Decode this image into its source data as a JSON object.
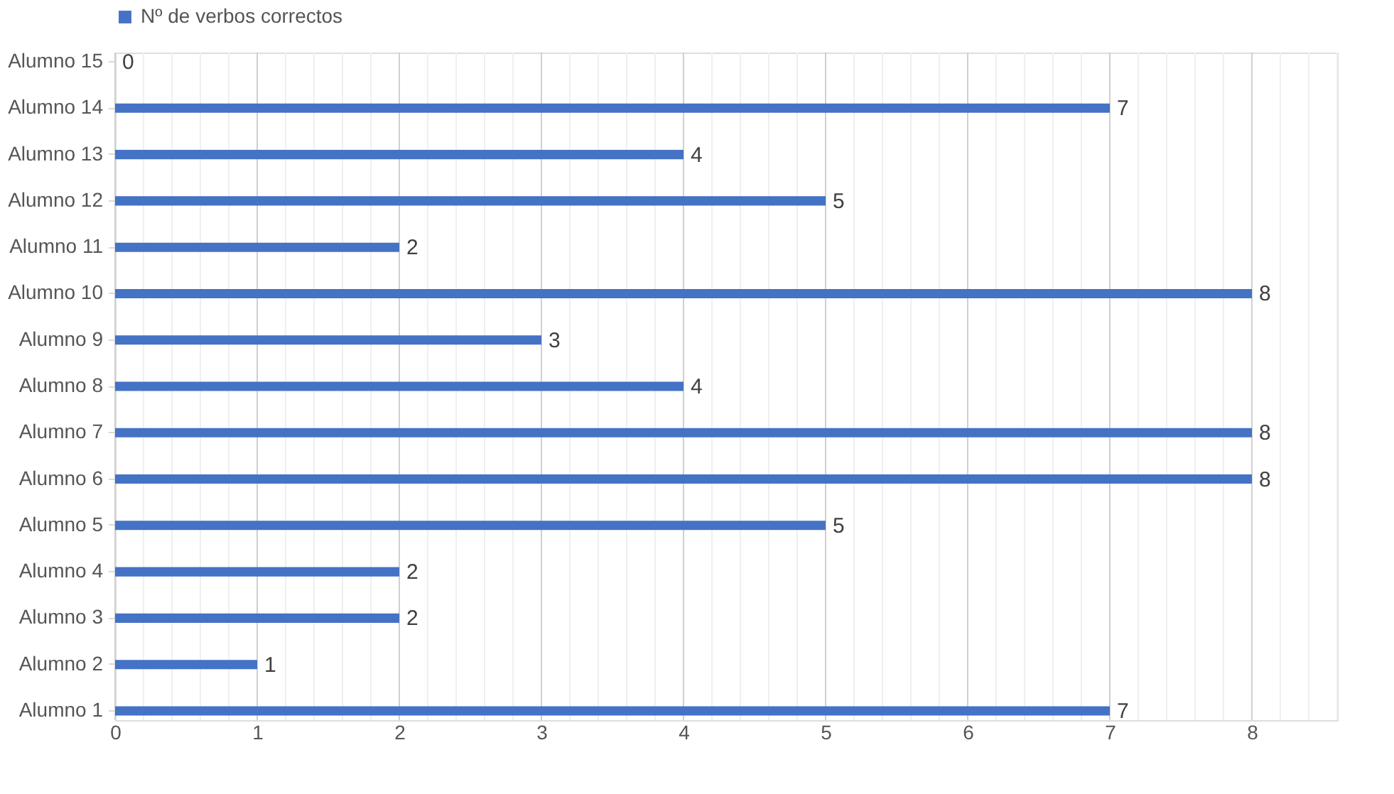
{
  "chart_data": {
    "type": "bar",
    "orientation": "horizontal",
    "categories": [
      "Alumno 15",
      "Alumno 14",
      "Alumno 13",
      "Alumno 12",
      "Alumno 11",
      "Alumno 10",
      "Alumno 9",
      "Alumno 8",
      "Alumno 7",
      "Alumno 6",
      "Alumno 5",
      "Alumno 4",
      "Alumno 3",
      "Alumno 2",
      "Alumno 1"
    ],
    "series": [
      {
        "name": "Nº de verbos correctos",
        "color": "#4472c4",
        "values": [
          0,
          7,
          4,
          5,
          2,
          8,
          3,
          4,
          8,
          8,
          5,
          2,
          2,
          1,
          7
        ]
      }
    ],
    "xlim": [
      0,
      8.6
    ],
    "xticks": [
      0,
      {
        "value": 0.2,
        "label": null
      },
      {
        "value": 0.4,
        "label": null
      },
      {
        "value": 0.6,
        "label": null
      },
      {
        "value": 0.8,
        "label": null
      },
      1,
      {
        "value": 1.2,
        "label": null
      },
      {
        "value": 1.4,
        "label": null
      },
      {
        "value": 1.6,
        "label": null
      },
      {
        "value": 1.8,
        "label": null
      },
      2,
      {
        "value": 2.2,
        "label": null
      },
      {
        "value": 2.4,
        "label": null
      },
      {
        "value": 2.6,
        "label": null
      },
      {
        "value": 2.8,
        "label": null
      },
      3,
      {
        "value": 3.2,
        "label": null
      },
      {
        "value": 3.4,
        "label": null
      },
      {
        "value": 3.6,
        "label": null
      },
      {
        "value": 3.8,
        "label": null
      },
      4,
      {
        "value": 4.2,
        "label": null
      },
      {
        "value": 4.4,
        "label": null
      },
      {
        "value": 4.6,
        "label": null
      },
      {
        "value": 4.8,
        "label": null
      },
      5,
      {
        "value": 5.2,
        "label": null
      },
      {
        "value": 5.4,
        "label": null
      },
      {
        "value": 5.6,
        "label": null
      },
      {
        "value": 5.8,
        "label": null
      },
      6,
      {
        "value": 6.2,
        "label": null
      },
      {
        "value": 6.4,
        "label": null
      },
      {
        "value": 6.6,
        "label": null
      },
      {
        "value": 6.8,
        "label": null
      },
      7,
      {
        "value": 7.2,
        "label": null
      },
      {
        "value": 7.4,
        "label": null
      },
      {
        "value": 7.6,
        "label": null
      },
      {
        "value": 7.8,
        "label": null
      },
      8,
      {
        "value": 8.2,
        "label": null
      },
      {
        "value": 8.4,
        "label": null
      },
      {
        "value": 8.6,
        "label": null
      }
    ],
    "grid": "x",
    "legend": "top",
    "data_labels": true
  }
}
